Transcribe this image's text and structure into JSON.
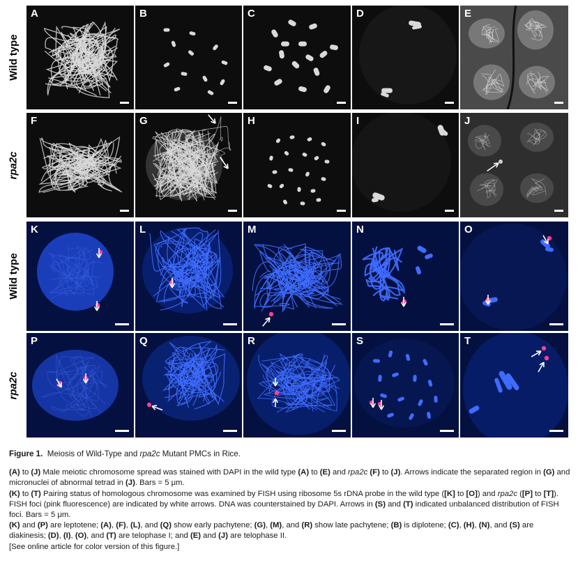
{
  "rows": [
    {
      "label": "Wild type",
      "italic": false
    },
    {
      "label": "rpa2c",
      "italic": true
    },
    {
      "label": "Wild type",
      "italic": false
    },
    {
      "label": "rpa2c",
      "italic": true
    }
  ],
  "panels": [
    "A",
    "B",
    "C",
    "D",
    "E",
    "F",
    "G",
    "H",
    "I",
    "J",
    "K",
    "L",
    "M",
    "N",
    "O",
    "P",
    "Q",
    "R",
    "S",
    "T"
  ],
  "colors": {
    "dapi_gray": "#d9d9d9",
    "dapi_blue": "#3f6cff",
    "fish_pink": "#ff3d9a",
    "arrow": "#ffffff",
    "background_dark": "#0d0d0d",
    "background_blue": "#04103f"
  },
  "caption": {
    "figure_label": "Figure 1.",
    "title_pre": "Meiosis of Wild-Type and ",
    "title_gene": "rpa2c",
    "title_post": " Mutant PMCs in Rice.",
    "p1_a": "(A)",
    "p1_b": " to ",
    "p1_c": "(J)",
    "p1_d": " Male meiotic chromosome spread was stained with DAPI in the wild type ",
    "p1_e": "(A)",
    "p1_f": " to ",
    "p1_g": "(E)",
    "p1_h": " and ",
    "p1_i": "rpa2c",
    "p1_j": " ",
    "p1_k": "(F)",
    "p1_l": " to ",
    "p1_m": "(J)",
    "p1_n": ". Arrows indicate the separated region in ",
    "p1_o": "(G)",
    "p1_p": " and micronuclei of abnormal tetrad in ",
    "p1_q": "(J)",
    "p1_r": ". Bars = 5 μm.",
    "p2_a": "(K)",
    "p2_b": " to ",
    "p2_c": "(T)",
    "p2_d": " Pairing status of homologous chromosome was examined by FISH using ribosome 5s rDNA probe in the wild type (",
    "p2_e": "[K]",
    "p2_f": " to ",
    "p2_g": "[O]",
    "p2_h": ") and ",
    "p2_i": "rpa2c",
    "p2_j": " (",
    "p2_k": "[P]",
    "p2_l": " to ",
    "p2_m": "[T]",
    "p2_n": "). FISH foci (pink fluorescence) are indicated by white arrows. DNA was counterstained by DAPI. Arrows in ",
    "p2_o": "(S)",
    "p2_p": " and ",
    "p2_q": "(T)",
    "p2_r": " indicated unbalanced distribution of FISH foci. Bars = 5 μm.",
    "p3_a": "(K)",
    "p3_b": " and ",
    "p3_c": "(P)",
    "p3_d": " are leptotene; ",
    "p3_e": "(A)",
    "p3_f": ", ",
    "p3_g": "(F)",
    "p3_h": ", ",
    "p3_i": "(L)",
    "p3_j": ", and ",
    "p3_k": "(Q)",
    "p3_l": " show early pachytene; ",
    "p3_m": "(G)",
    "p3_n": ", ",
    "p3_o": "(M)",
    "p3_p": ", and ",
    "p3_q": "(R)",
    "p3_r": " show late pachytene; ",
    "p3_s": "(B)",
    "p3_t": " is diplotene; ",
    "p3_u": "(C)",
    "p3_v": ", ",
    "p3_w": "(H)",
    "p3_x": ", ",
    "p3_y": "(N)",
    "p3_z": ", and ",
    "p3_aa": "(S)",
    "p3_ab": " are diakinesis; ",
    "p3_ac": "(D)",
    "p3_ad": ", ",
    "p3_ae": "(I)",
    "p3_af": ", ",
    "p3_ag": "(O)",
    "p3_ah": ", and ",
    "p3_ai": "(T)",
    "p3_aj": " are telophase I; and ",
    "p3_ak": "(E)",
    "p3_al": " and ",
    "p3_am": "(J)",
    "p3_an": " are telophase II.",
    "p4": "[See online article for color version of this figure.]"
  }
}
